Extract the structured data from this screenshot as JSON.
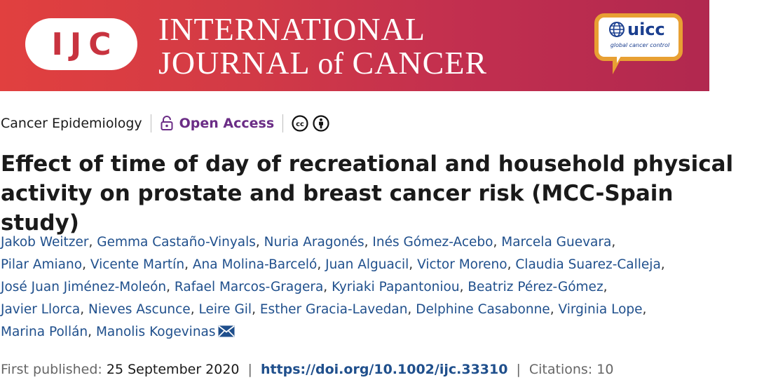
{
  "banner": {
    "logo_letters": "IJC",
    "title_line1": "INTERNATIONAL",
    "title_line2_a": "JOURNAL",
    "title_line2_of": "of",
    "title_line2_b": "CANCER",
    "partner_logo": "uicc",
    "partner_tagline": "global cancer control",
    "colors": {
      "banner_start": "#e1403f",
      "banner_end": "#b1284f",
      "uicc_border": "#e8a033",
      "uicc_blue": "#1b3f8f"
    }
  },
  "meta": {
    "section": "Cancer Epidemiology",
    "access_label": "Open Access",
    "license_icons": [
      "cc-icon",
      "by-icon"
    ],
    "access_color": "#6b2d86"
  },
  "article": {
    "title_line1": "Effect of time of day of recreational and household physical",
    "title_line2": "activity on prostate and breast cancer risk (MCC-Spain study)"
  },
  "authors": [
    "Jakob Weitzer",
    "Gemma Castaño-Vinyals",
    "Nuria Aragonés",
    "Inés Gómez-Acebo",
    "Marcela Guevara",
    "Pilar Amiano",
    "Vicente Martín",
    "Ana Molina-Barceló",
    "Juan Alguacil",
    "Victor Moreno",
    "Claudia Suarez-Calleja",
    "José Juan Jiménez-Moleón",
    "Rafael Marcos-Gragera",
    "Kyriaki Papantoniou",
    "Beatriz Pérez-Gómez",
    "Javier Llorca",
    "Nieves Ascunce",
    "Leire Gil",
    "Esther Gracia-Lavedan",
    "Delphine Casabonne",
    "Virginia Lope",
    "Marina Pollán",
    "Manolis Kogevinas"
  ],
  "pubinfo": {
    "first_published_label": "First published:",
    "first_published_date": "25 September 2020",
    "separator": "|",
    "doi": "https://doi.org/10.1002/ijc.33310",
    "citations_label": "Citations:",
    "citations_count": "10"
  }
}
